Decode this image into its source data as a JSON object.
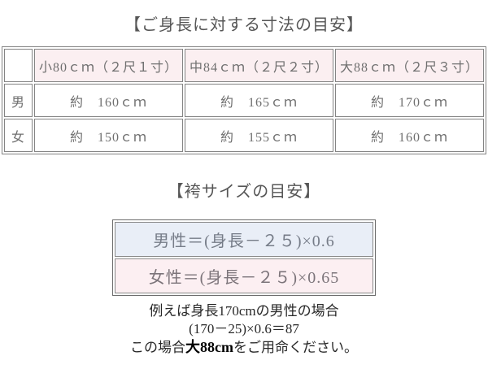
{
  "colors": {
    "pink_bg": "#fbeff1",
    "blue_bg": "#e9eef7",
    "table_border": "#848484",
    "table_text": "#6f6f6f",
    "title_text": "#565656",
    "note_text": "#282828"
  },
  "height_section": {
    "title": "【ご身長に対する寸法の目安】",
    "table": {
      "corner": "",
      "columns": [
        "小80ｃｍ（２尺１寸）",
        "中84ｃｍ（２尺２寸）",
        "大88ｃｍ（２尺３寸）"
      ],
      "rows": [
        {
          "label": "男",
          "values": [
            "約　160ｃｍ",
            "約　165ｃｍ",
            "約　170ｃｍ"
          ]
        },
        {
          "label": "女",
          "values": [
            "約　150ｃｍ",
            "約　155ｃｍ",
            "約　160ｃｍ"
          ]
        }
      ]
    }
  },
  "hakama_section": {
    "title": "【袴サイズの目安】",
    "formulas": [
      {
        "name": "men",
        "text": "男性＝(身長－２５)×0.6"
      },
      {
        "name": "women",
        "text": "女性＝(身長－２５)×0.65"
      }
    ],
    "note": {
      "line1": "例えば身長170cmの男性の場合",
      "line2": "(170－25)×0.6＝87",
      "line3_prefix": "この場合",
      "line3_bold": "大88cm",
      "line3_suffix": "をご用命ください。"
    }
  }
}
